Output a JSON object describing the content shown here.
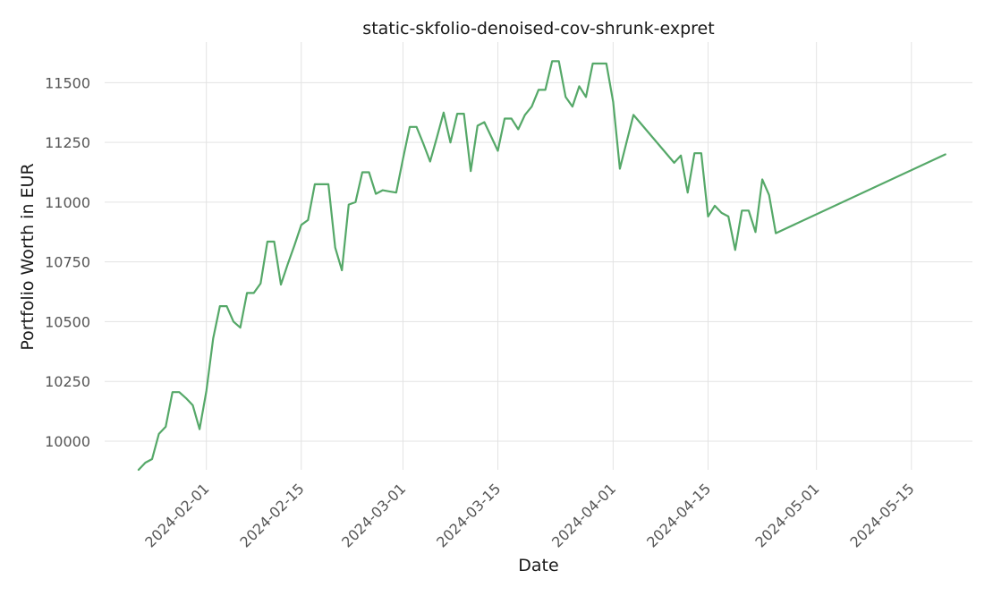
{
  "chart_data": {
    "type": "line",
    "title": "static-skfolio-denoised-cov-shrunk-expret",
    "xlabel": "Date",
    "ylabel": "Portfolio Worth in EUR",
    "xlim": [
      "2024-01-17",
      "2024-05-24"
    ],
    "ylim": [
      9880,
      11670
    ],
    "grid": true,
    "y_ticks": [
      10000,
      10250,
      10500,
      10750,
      11000,
      11250,
      11500
    ],
    "x_ticks": [
      "2024-02-01",
      "2024-02-15",
      "2024-03-01",
      "2024-03-15",
      "2024-04-01",
      "2024-04-15",
      "2024-05-01",
      "2024-05-15"
    ],
    "colors": {
      "line": "#55a868"
    },
    "series": [
      {
        "x": [
          "2024-01-22",
          "2024-01-23",
          "2024-01-24",
          "2024-01-25",
          "2024-01-26",
          "2024-01-27",
          "2024-01-28",
          "2024-01-29",
          "2024-01-30",
          "2024-01-31",
          "2024-02-01",
          "2024-02-02",
          "2024-02-03",
          "2024-02-04",
          "2024-02-05",
          "2024-02-06",
          "2024-02-07",
          "2024-02-08",
          "2024-02-09",
          "2024-02-10",
          "2024-02-11",
          "2024-02-12",
          "2024-02-13",
          "2024-02-14",
          "2024-02-15",
          "2024-02-16",
          "2024-02-17",
          "2024-02-18",
          "2024-02-19",
          "2024-02-20",
          "2024-02-21",
          "2024-02-22",
          "2024-02-23",
          "2024-02-24",
          "2024-02-25",
          "2024-02-26",
          "2024-02-27",
          "2024-02-28",
          "2024-02-29",
          "2024-03-01",
          "2024-03-02",
          "2024-03-03",
          "2024-03-04",
          "2024-03-05",
          "2024-03-06",
          "2024-03-07",
          "2024-03-08",
          "2024-03-09",
          "2024-03-10",
          "2024-03-11",
          "2024-03-12",
          "2024-03-13",
          "2024-03-14",
          "2024-03-15",
          "2024-03-16",
          "2024-03-17",
          "2024-03-18",
          "2024-03-19",
          "2024-03-20",
          "2024-03-21",
          "2024-03-22",
          "2024-03-23",
          "2024-03-24",
          "2024-03-25",
          "2024-03-26",
          "2024-03-27",
          "2024-03-28",
          "2024-03-29",
          "2024-03-30",
          "2024-03-31",
          "2024-04-01",
          "2024-04-02",
          "2024-04-04",
          "2024-04-10",
          "2024-04-11",
          "2024-04-12",
          "2024-04-13",
          "2024-04-14",
          "2024-04-15",
          "2024-04-16",
          "2024-04-17",
          "2024-04-18",
          "2024-04-19",
          "2024-04-20",
          "2024-04-21",
          "2024-04-22",
          "2024-04-23",
          "2024-04-24",
          "2024-04-25",
          "2024-05-20"
        ],
        "values": [
          9880,
          9910,
          9925,
          10030,
          10060,
          10205,
          10205,
          10180,
          10150,
          10050,
          10210,
          10430,
          10565,
          10565,
          10500,
          10475,
          10620,
          10620,
          10660,
          10835,
          10835,
          10655,
          10740,
          10820,
          10905,
          10925,
          11075,
          11075,
          11075,
          10810,
          10715,
          10990,
          11000,
          11125,
          11125,
          11035,
          11050,
          11045,
          11040,
          11180,
          11315,
          11315,
          11245,
          11170,
          11270,
          11375,
          11250,
          11370,
          11370,
          11130,
          11320,
          11335,
          11275,
          11215,
          11350,
          11350,
          11305,
          11365,
          11400,
          11470,
          11470,
          11590,
          11590,
          11440,
          11400,
          11485,
          11440,
          11580,
          11580,
          11580,
          11420,
          11140,
          11365,
          11165,
          11195,
          11040,
          11205,
          11205,
          10940,
          10985,
          10955,
          10940,
          10800,
          10965,
          10965,
          10875,
          11095,
          11030,
          10870,
          11200
        ]
      }
    ]
  }
}
